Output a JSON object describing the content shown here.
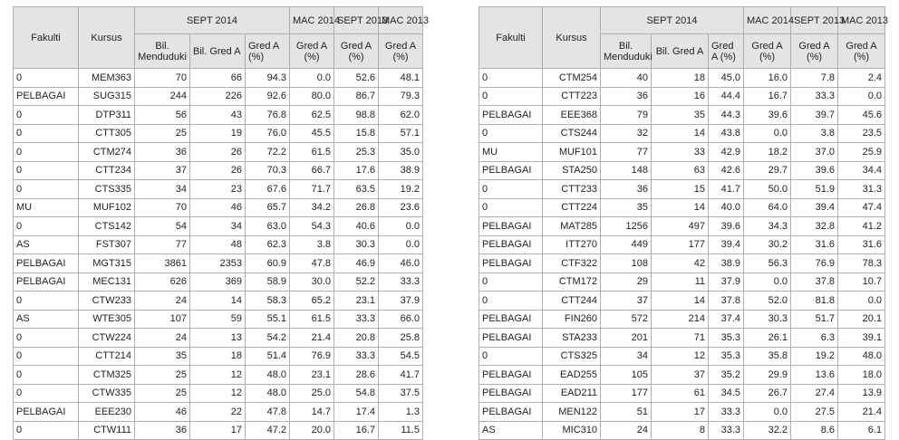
{
  "headers": {
    "fakulti": "Fakulti",
    "kursus": "Kursus",
    "sept2014": "SEPT 2014",
    "mac2014": "MAC 2014",
    "sept2013": "SEPT 2013",
    "mac2013": "MAC 2013",
    "bil_menduduki": "Bil. Menduduki",
    "bil_gred_a": "Bil. Gred A",
    "gred_a_pct": "Gred A (%)",
    "gred_a_pct_short": "Gred A (%)"
  },
  "left_table": [
    [
      "0",
      "MEM363",
      "70",
      "66",
      "94.3",
      "0.0",
      "52.6",
      "48.1"
    ],
    [
      "PELBAGAI",
      "SUG315",
      "244",
      "226",
      "92.6",
      "80.0",
      "86.7",
      "79.3"
    ],
    [
      "0",
      "DTP311",
      "56",
      "43",
      "76.8",
      "62.5",
      "98.8",
      "62.0"
    ],
    [
      "0",
      "CTT305",
      "25",
      "19",
      "76.0",
      "45.5",
      "15.8",
      "57.1"
    ],
    [
      "0",
      "CTM274",
      "36",
      "26",
      "72.2",
      "61.5",
      "25.3",
      "35.0"
    ],
    [
      "0",
      "CTT234",
      "37",
      "26",
      "70.3",
      "66.7",
      "17.6",
      "38.9"
    ],
    [
      "0",
      "CTS335",
      "34",
      "23",
      "67.6",
      "71.7",
      "63.5",
      "19.2"
    ],
    [
      "MU",
      "MUF102",
      "70",
      "46",
      "65.7",
      "34.2",
      "26.8",
      "23.6"
    ],
    [
      "0",
      "CTS142",
      "54",
      "34",
      "63.0",
      "54.3",
      "40.6",
      "0.0"
    ],
    [
      "AS",
      "FST307",
      "77",
      "48",
      "62.3",
      "3.8",
      "30.3",
      "0.0"
    ],
    [
      "PELBAGAI",
      "MGT315",
      "3861",
      "2353",
      "60.9",
      "47.8",
      "46.9",
      "46.0"
    ],
    [
      "PELBAGAI",
      "MEC131",
      "626",
      "369",
      "58.9",
      "30.0",
      "52.2",
      "33.3"
    ],
    [
      "0",
      "CTW233",
      "24",
      "14",
      "58.3",
      "65.2",
      "23.1",
      "37.9"
    ],
    [
      "AS",
      "WTE305",
      "107",
      "59",
      "55.1",
      "61.5",
      "33.3",
      "66.0"
    ],
    [
      "0",
      "CTW224",
      "24",
      "13",
      "54.2",
      "21.4",
      "20.8",
      "25.8"
    ],
    [
      "0",
      "CTT214",
      "35",
      "18",
      "51.4",
      "76.9",
      "33.3",
      "54.5"
    ],
    [
      "0",
      "CTM325",
      "25",
      "12",
      "48.0",
      "23.1",
      "28.6",
      "41.7"
    ],
    [
      "0",
      "CTW335",
      "25",
      "12",
      "48.0",
      "25.0",
      "54.8",
      "37.5"
    ],
    [
      "PELBAGAI",
      "EEE230",
      "46",
      "22",
      "47.8",
      "14.7",
      "17.4",
      "1.3"
    ],
    [
      "0",
      "CTW111",
      "36",
      "17",
      "47.2",
      "20.0",
      "16.7",
      "11.5"
    ]
  ],
  "right_table": [
    [
      "0",
      "CTM254",
      "40",
      "18",
      "45.0",
      "16.0",
      "7.8",
      "2.4"
    ],
    [
      "0",
      "CTT223",
      "36",
      "16",
      "44.4",
      "16.7",
      "33.3",
      "0.0"
    ],
    [
      "PELBAGAI",
      "EEE368",
      "79",
      "35",
      "44.3",
      "39.6",
      "39.7",
      "45.6"
    ],
    [
      "0",
      "CTS244",
      "32",
      "14",
      "43.8",
      "0.0",
      "3.8",
      "23.5"
    ],
    [
      "MU",
      "MUF101",
      "77",
      "33",
      "42.9",
      "18.2",
      "37.0",
      "25.9"
    ],
    [
      "PELBAGAI",
      "STA250",
      "148",
      "63",
      "42.6",
      "29.7",
      "39.6",
      "34.4"
    ],
    [
      "0",
      "CTT233",
      "36",
      "15",
      "41.7",
      "50.0",
      "51.9",
      "31.3"
    ],
    [
      "0",
      "CTT224",
      "35",
      "14",
      "40.0",
      "64.0",
      "39.4",
      "47.4"
    ],
    [
      "PELBAGAI",
      "MAT285",
      "1256",
      "497",
      "39.6",
      "34.3",
      "32.8",
      "41.2"
    ],
    [
      "PELBAGAI",
      "ITT270",
      "449",
      "177",
      "39.4",
      "30.2",
      "31.6",
      "31.6"
    ],
    [
      "PELBAGAI",
      "CTF322",
      "108",
      "42",
      "38.9",
      "56.3",
      "76.9",
      "78.3"
    ],
    [
      "0",
      "CTM172",
      "29",
      "11",
      "37.9",
      "0.0",
      "37.8",
      "10.7"
    ],
    [
      "0",
      "CTT244",
      "37",
      "14",
      "37.8",
      "52.0",
      "81.8",
      "0.0"
    ],
    [
      "PELBAGAI",
      "FIN260",
      "572",
      "214",
      "37.4",
      "30.3",
      "51.7",
      "20.1"
    ],
    [
      "PELBAGAI",
      "STA233",
      "201",
      "71",
      "35.3",
      "26.1",
      "6.3",
      "39.1"
    ],
    [
      "0",
      "CTS325",
      "34",
      "12",
      "35.3",
      "35.8",
      "19.2",
      "48.0"
    ],
    [
      "PELBAGAI",
      "EAD255",
      "105",
      "37",
      "35.2",
      "29.9",
      "13.6",
      "18.0"
    ],
    [
      "PELBAGAI",
      "EAD211",
      "177",
      "61",
      "34.5",
      "26.7",
      "27.4",
      "13.9"
    ],
    [
      "PELBAGAI",
      "MEN122",
      "51",
      "17",
      "33.3",
      "0.0",
      "27.5",
      "21.4"
    ],
    [
      "AS",
      "MIC310",
      "24",
      "8",
      "33.3",
      "32.2",
      "8.6",
      "6.1"
    ]
  ]
}
